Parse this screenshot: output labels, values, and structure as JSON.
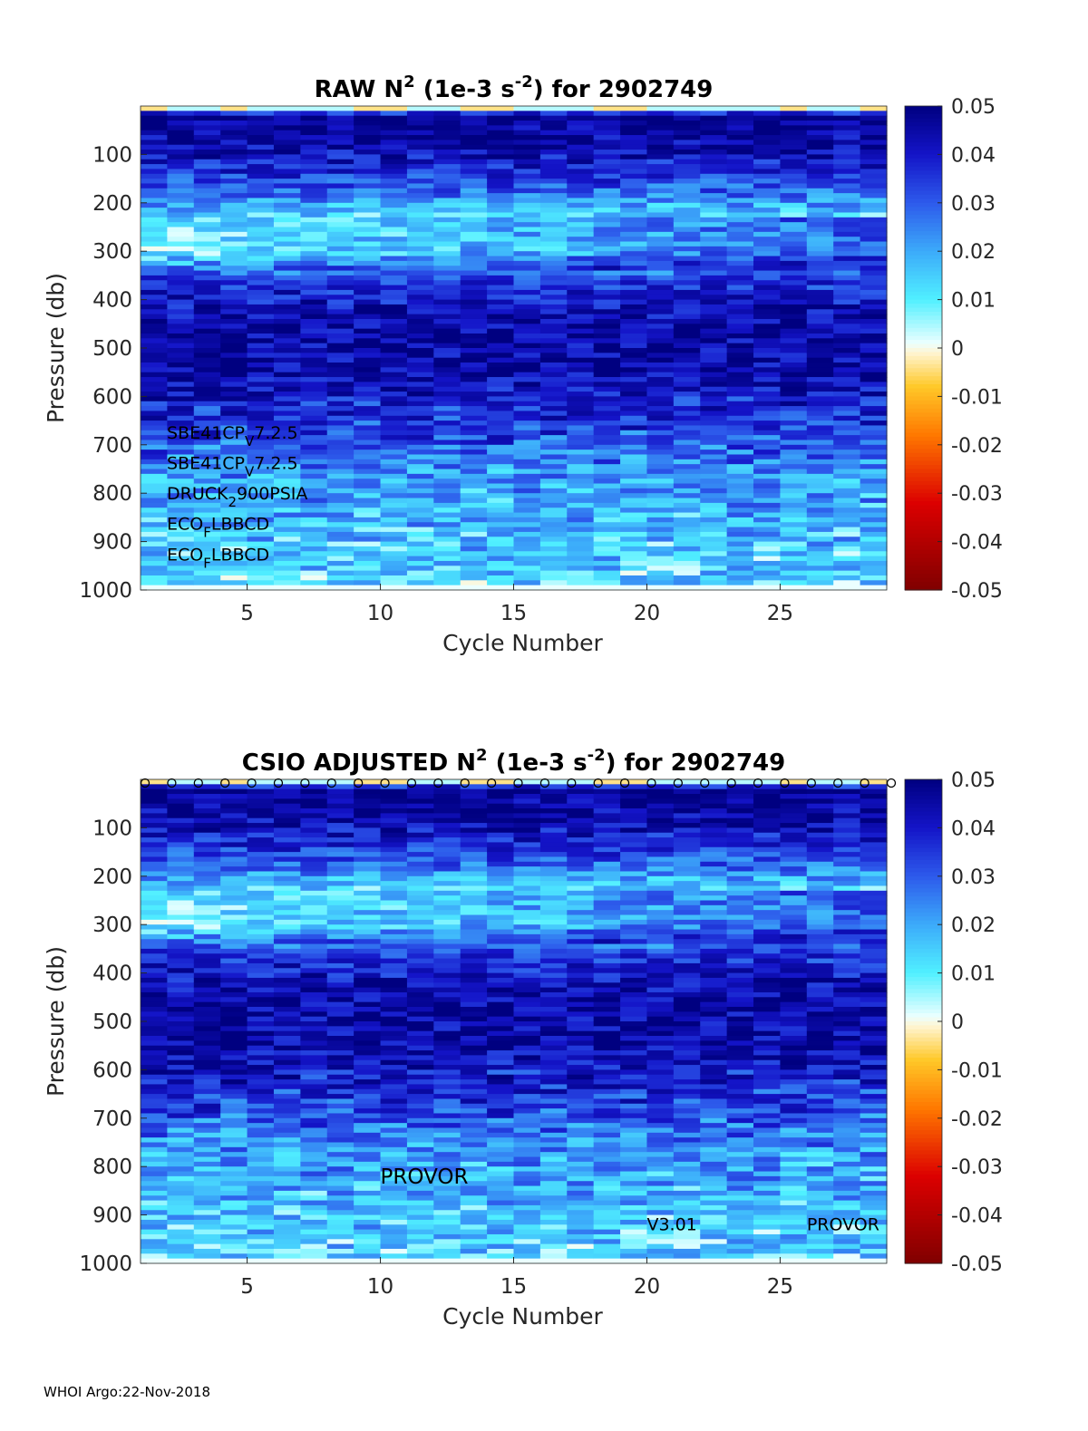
{
  "footer": "WHOI Argo:22-Nov-2018",
  "chart_data": [
    {
      "type": "heatmap",
      "title_parts": [
        "RAW N",
        "2",
        " (1e-3 s",
        "-2",
        ") for 2902749"
      ],
      "xlabel": "Cycle Number",
      "ylabel": "Pressure (db)",
      "xlim": [
        1,
        29
      ],
      "ylim": [
        0,
        1000
      ],
      "x_ticks": [
        5,
        10,
        15,
        20,
        25
      ],
      "y_ticks": [
        100,
        200,
        300,
        400,
        500,
        600,
        700,
        800,
        900,
        1000
      ],
      "colorbar": {
        "min": -0.05,
        "max": 0.05,
        "ticks": [
          "0.05",
          "0.04",
          "0.03",
          "0.02",
          "0.01",
          "0",
          "-0.01",
          "-0.02",
          "-0.03",
          "-0.04",
          "-0.05"
        ]
      },
      "sensor_labels": [
        {
          "parts": [
            "SBE41CP",
            "V",
            "7.2.5"
          ],
          "y": 670
        },
        {
          "parts": [
            "SBE41CP",
            "V",
            "7.2.5"
          ],
          "y": 733
        },
        {
          "parts": [
            "DRUCK",
            "2",
            "900PSIA"
          ],
          "y": 796
        },
        {
          "parts": [
            "ECO",
            "F",
            "LBBCD"
          ],
          "y": 859
        },
        {
          "parts": [
            "ECO",
            "F",
            "LBBCD"
          ],
          "y": 922
        }
      ],
      "cycles": [
        1,
        29
      ],
      "depth_profile": [
        {
          "p": 0,
          "n2": 0.003
        },
        {
          "p": 20,
          "n2": 0.05
        },
        {
          "p": 100,
          "n2": 0.042
        },
        {
          "p": 170,
          "n2": 0.03
        },
        {
          "p": 240,
          "n2": 0.01
        },
        {
          "p": 300,
          "n2": 0.008
        },
        {
          "p": 360,
          "n2": 0.035
        },
        {
          "p": 450,
          "n2": 0.045
        },
        {
          "p": 550,
          "n2": 0.045
        },
        {
          "p": 650,
          "n2": 0.035
        },
        {
          "p": 750,
          "n2": 0.024
        },
        {
          "p": 850,
          "n2": 0.018
        },
        {
          "p": 950,
          "n2": 0.014
        },
        {
          "p": 1000,
          "n2": 0.012
        }
      ]
    },
    {
      "type": "heatmap",
      "title_parts": [
        "CSIO  ADJUSTED N",
        "2",
        " (1e-3 s",
        "-2",
        ") for 2902749"
      ],
      "xlabel": "Cycle Number",
      "ylabel": "Pressure (db)",
      "xlim": [
        1,
        29
      ],
      "ylim": [
        0,
        1000
      ],
      "x_ticks": [
        5,
        10,
        15,
        20,
        25
      ],
      "y_ticks": [
        100,
        200,
        300,
        400,
        500,
        600,
        700,
        800,
        900,
        1000
      ],
      "colorbar": {
        "min": -0.05,
        "max": 0.05,
        "ticks": [
          "0.05",
          "0.04",
          "0.03",
          "0.02",
          "0.01",
          "0",
          "-0.01",
          "-0.02",
          "-0.03",
          "-0.04",
          "-0.05"
        ]
      },
      "annotations": [
        {
          "text": "PROVOR",
          "x": 10,
          "y": 800,
          "size": "large"
        },
        {
          "text": "V3.01",
          "x": 20,
          "y": 905,
          "size": "small"
        },
        {
          "text": "PROVOR",
          "x": 26,
          "y": 905,
          "size": "small"
        }
      ],
      "top_markers": "o",
      "depth_profile": [
        {
          "p": 0,
          "n2": 0.003
        },
        {
          "p": 20,
          "n2": 0.05
        },
        {
          "p": 100,
          "n2": 0.042
        },
        {
          "p": 170,
          "n2": 0.03
        },
        {
          "p": 240,
          "n2": 0.01
        },
        {
          "p": 300,
          "n2": 0.008
        },
        {
          "p": 360,
          "n2": 0.035
        },
        {
          "p": 450,
          "n2": 0.045
        },
        {
          "p": 550,
          "n2": 0.045
        },
        {
          "p": 650,
          "n2": 0.035
        },
        {
          "p": 750,
          "n2": 0.024
        },
        {
          "p": 850,
          "n2": 0.018
        },
        {
          "p": 950,
          "n2": 0.014
        },
        {
          "p": 1000,
          "n2": 0.012
        }
      ]
    }
  ]
}
